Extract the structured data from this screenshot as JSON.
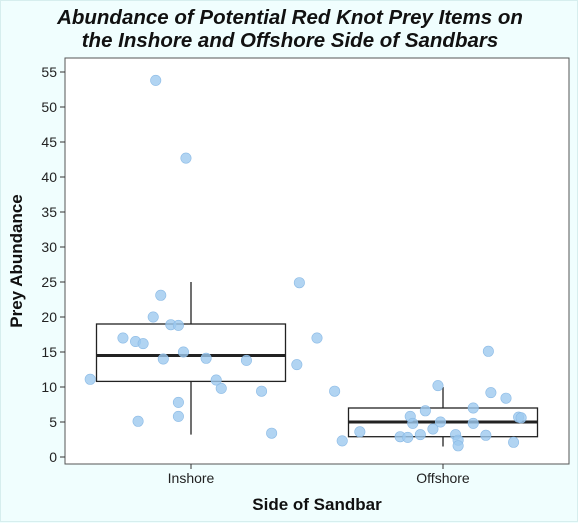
{
  "chart_data": {
    "type": "box",
    "title_line1": "Abundance of Potential Red Knot Prey Items on",
    "title_line2": "the Inshore and Offshore Side of Sandbars",
    "xlabel": "Side of Sandbar",
    "ylabel": "Prey Abundance",
    "ylim": [
      -1,
      57
    ],
    "yticks": [
      0,
      5,
      10,
      15,
      20,
      25,
      30,
      35,
      40,
      45,
      50,
      55
    ],
    "grid": false,
    "point_color": "#9ec9ef",
    "box_color": "#222222",
    "categories": [
      "Inshore",
      "Offshore"
    ],
    "boxes": [
      {
        "category": "Inshore",
        "min": 3.2,
        "q1": 10.8,
        "median": 14.5,
        "q3": 19.0,
        "max": 25.0,
        "points": [
          {
            "x": 0.6,
            "y": 11.1
          },
          {
            "x": 0.73,
            "y": 17.0
          },
          {
            "x": 0.78,
            "y": 16.5
          },
          {
            "x": 0.81,
            "y": 16.2
          },
          {
            "x": 0.85,
            "y": 20.0
          },
          {
            "x": 0.88,
            "y": 23.1
          },
          {
            "x": 0.89,
            "y": 14.0
          },
          {
            "x": 0.92,
            "y": 18.9
          },
          {
            "x": 0.95,
            "y": 18.8
          },
          {
            "x": 0.97,
            "y": 15.0
          },
          {
            "x": 1.06,
            "y": 14.1
          },
          {
            "x": 0.95,
            "y": 7.8
          },
          {
            "x": 0.95,
            "y": 5.8
          },
          {
            "x": 0.79,
            "y": 5.1
          },
          {
            "x": 1.12,
            "y": 9.8
          },
          {
            "x": 1.1,
            "y": 11.0
          },
          {
            "x": 1.22,
            "y": 13.8
          },
          {
            "x": 1.28,
            "y": 9.4
          },
          {
            "x": 1.32,
            "y": 3.4
          },
          {
            "x": 1.42,
            "y": 13.2
          },
          {
            "x": 1.43,
            "y": 24.9
          },
          {
            "x": 1.5,
            "y": 17.0
          },
          {
            "x": 0.86,
            "y": 53.8
          },
          {
            "x": 0.98,
            "y": 42.7
          }
        ]
      },
      {
        "category": "Offshore",
        "min": 1.5,
        "q1": 2.9,
        "median": 5.0,
        "q3": 7.0,
        "max": 10.0,
        "points": [
          {
            "x": 1.57,
            "y": 9.4
          },
          {
            "x": 1.6,
            "y": 2.3
          },
          {
            "x": 1.67,
            "y": 3.6
          },
          {
            "x": 1.83,
            "y": 2.9
          },
          {
            "x": 1.86,
            "y": 2.8
          },
          {
            "x": 1.87,
            "y": 5.8
          },
          {
            "x": 1.88,
            "y": 4.8
          },
          {
            "x": 1.91,
            "y": 3.2
          },
          {
            "x": 1.93,
            "y": 6.6
          },
          {
            "x": 1.96,
            "y": 4.0
          },
          {
            "x": 1.98,
            "y": 10.2
          },
          {
            "x": 1.99,
            "y": 5.0
          },
          {
            "x": 2.05,
            "y": 3.2
          },
          {
            "x": 2.06,
            "y": 2.4
          },
          {
            "x": 2.06,
            "y": 1.6
          },
          {
            "x": 2.12,
            "y": 7.0
          },
          {
            "x": 2.12,
            "y": 4.8
          },
          {
            "x": 2.17,
            "y": 3.1
          },
          {
            "x": 2.18,
            "y": 15.1
          },
          {
            "x": 2.19,
            "y": 9.2
          },
          {
            "x": 2.25,
            "y": 8.4
          },
          {
            "x": 2.28,
            "y": 2.1
          },
          {
            "x": 2.3,
            "y": 5.7
          },
          {
            "x": 2.31,
            "y": 5.6
          }
        ]
      }
    ]
  }
}
